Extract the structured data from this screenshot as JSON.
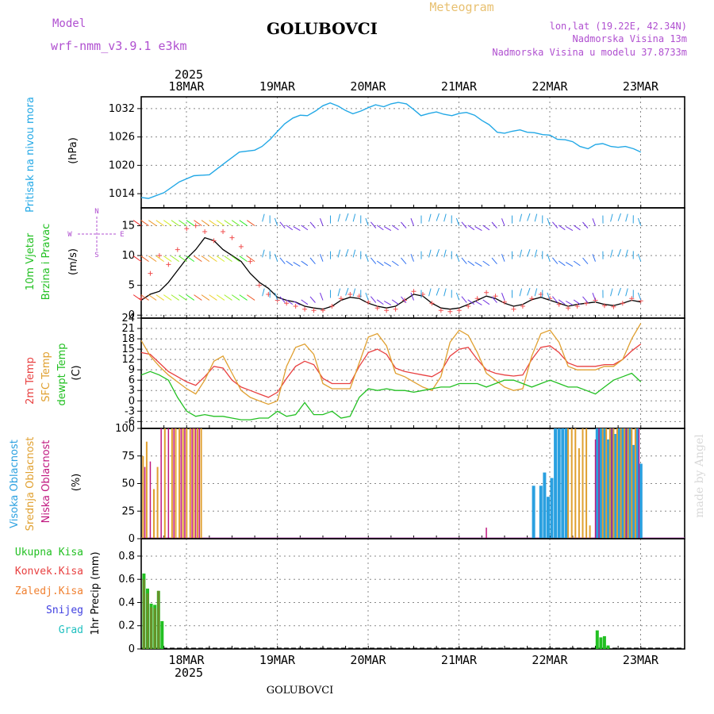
{
  "header": {
    "model_label": "Model",
    "model_name": "wrf-nmm_v3.9.1 e3km",
    "station": "GOLUBOVCI",
    "meteogram": "Meteogram",
    "lonlat": "lon,lat (19.22E, 42.34N)",
    "elevation": "Nadmorska Visina 13m",
    "model_elevation": "Nadmorska Visina u modelu 37.8733m",
    "footer_station": "GOLUBOVCI",
    "watermark": "made by Angel"
  },
  "colors": {
    "pressure": "#22a8e6",
    "wind_label": "#22c022",
    "t2m": "#e84040",
    "sfc": "#e0a030",
    "dewpt": "#22c022",
    "cloud_high": "#2aa0e0",
    "cloud_mid": "#e0a030",
    "cloud_low": "#c01880",
    "precip_total": "#22c022",
    "precip_conv": "#e84040",
    "precip_frozen": "#f08030",
    "snow": "#4040e0",
    "hail": "#20c0c0",
    "model_text": "#b050d0",
    "meteogram_text": "#e8c070",
    "lonlat_text": "#b050d0"
  },
  "time_axis": {
    "year": "2025",
    "days": [
      "18MAR",
      "19MAR",
      "20MAR",
      "21MAR",
      "22MAR",
      "23MAR"
    ]
  },
  "chart_data": [
    {
      "type": "line",
      "title": "Pritisak na nivou mora",
      "ylabel": "(hPa)",
      "yticks": [
        "1014",
        "1020",
        "1026",
        "1032"
      ],
      "ylim": [
        1011,
        1034.5
      ],
      "x_days": [
        0,
        0.08,
        0.25,
        0.42,
        0.58,
        0.75,
        0.92,
        1.08,
        1.25,
        1.33,
        1.42,
        1.5,
        1.58,
        1.67,
        1.75,
        1.83,
        1.92,
        2.0,
        2.08,
        2.17,
        2.25,
        2.33,
        2.42,
        2.5,
        2.58,
        2.67,
        2.75,
        2.83,
        2.92,
        3.0,
        3.08,
        3.17,
        3.25,
        3.33,
        3.42,
        3.5,
        3.58,
        3.67,
        3.75,
        3.83,
        3.92,
        4.0,
        4.08,
        4.17,
        4.25,
        4.33,
        4.42,
        4.5,
        4.58,
        4.67,
        4.75,
        4.83,
        4.92,
        5.0,
        5.08,
        5.17,
        5.25,
        5.33,
        5.42,
        5.5
      ],
      "series": [
        {
          "name": "Pritisak",
          "values": [
            1013.2,
            1013.0,
            1014.2,
            1016.5,
            1017.8,
            1018.0,
            1020.5,
            1022.8,
            1023.2,
            1024.0,
            1025.5,
            1027.2,
            1028.8,
            1030.0,
            1030.6,
            1030.5,
            1031.5,
            1032.6,
            1033.2,
            1032.5,
            1031.6,
            1030.9,
            1031.5,
            1032.2,
            1032.8,
            1032.4,
            1033.0,
            1033.3,
            1033.0,
            1031.8,
            1030.5,
            1031.0,
            1031.3,
            1030.8,
            1030.5,
            1031.0,
            1031.2,
            1030.6,
            1029.5,
            1028.6,
            1027.0,
            1026.8,
            1027.2,
            1027.5,
            1027.0,
            1026.9,
            1026.5,
            1026.4,
            1025.5,
            1025.4,
            1025.0,
            1024.0,
            1023.5,
            1024.4,
            1024.6,
            1024.0,
            1023.8,
            1024.0,
            1023.5,
            1022.8
          ]
        }
      ]
    },
    {
      "type": "line",
      "title": "10m Vjetar Brzina i Pravac",
      "ylabel": "(m/s)",
      "yticks": [
        "0",
        "5",
        "10",
        "15"
      ],
      "ylim": [
        -0.5,
        18
      ],
      "compass": [
        "N",
        "W",
        "E",
        "S"
      ],
      "x_days": [
        0,
        0.1,
        0.2,
        0.3,
        0.4,
        0.5,
        0.6,
        0.7,
        0.8,
        0.9,
        1.0,
        1.1,
        1.2,
        1.3,
        1.4,
        1.5,
        1.6,
        1.7,
        1.8,
        1.9,
        2.0,
        2.1,
        2.2,
        2.3,
        2.4,
        2.5,
        2.6,
        2.7,
        2.8,
        2.9,
        3.0,
        3.1,
        3.2,
        3.3,
        3.4,
        3.5,
        3.6,
        3.7,
        3.8,
        3.9,
        4.0,
        4.1,
        4.2,
        4.3,
        4.4,
        4.5,
        4.6,
        4.7,
        4.8,
        4.9,
        5.0,
        5.1,
        5.2,
        5.3,
        5.4,
        5.5
      ],
      "series": [
        {
          "name": "Brzina",
          "values": [
            2.5,
            3.5,
            4.0,
            5.5,
            7.5,
            9.5,
            11.0,
            13.0,
            12.5,
            11.0,
            10.0,
            9.0,
            7.0,
            5.5,
            4.5,
            3.0,
            2.5,
            2.2,
            1.5,
            1.2,
            1.0,
            1.5,
            2.5,
            3.0,
            2.8,
            2.0,
            1.5,
            1.2,
            1.5,
            2.5,
            3.5,
            3.2,
            2.0,
            1.2,
            1.0,
            1.2,
            1.8,
            2.5,
            3.2,
            2.8,
            2.0,
            1.5,
            1.8,
            2.6,
            3.0,
            2.5,
            2.0,
            1.5,
            1.8,
            2.0,
            2.2,
            1.8,
            1.6,
            2.0,
            2.5,
            2.2
          ]
        },
        {
          "name": "Udari",
          "values": [
            2.8,
            7.0,
            10.0,
            8.5,
            11.0,
            14.5,
            15.0,
            14.0,
            12.5,
            14.0,
            13.0,
            11.5,
            9.0,
            5.0,
            3.5,
            2.5,
            2.0,
            1.5,
            1.0,
            0.8,
            0.8,
            1.5,
            2.8,
            3.5,
            3.2,
            2.2,
            1.2,
            0.8,
            1.0,
            2.5,
            4.0,
            3.5,
            2.0,
            0.8,
            0.6,
            0.8,
            1.5,
            2.8,
            3.8,
            3.2,
            2.2,
            1.0,
            1.5,
            2.8,
            3.5,
            2.8,
            1.8,
            1.2,
            1.5,
            2.0,
            2.5,
            1.6,
            1.4,
            2.0,
            2.8,
            2.4
          ]
        }
      ]
    },
    {
      "type": "line",
      "title": "2m Temp / SFC Temp / dewpt Temp",
      "ylabel": "(C)",
      "yticks": [
        "-6",
        "-3",
        "0",
        "3",
        "6",
        "9",
        "12",
        "15",
        "18",
        "21",
        "24"
      ],
      "ylim": [
        -8,
        24
      ],
      "x_days": [
        0,
        0.1,
        0.2,
        0.3,
        0.4,
        0.5,
        0.6,
        0.7,
        0.8,
        0.9,
        1.0,
        1.1,
        1.2,
        1.3,
        1.4,
        1.5,
        1.6,
        1.7,
        1.8,
        1.9,
        2.0,
        2.1,
        2.2,
        2.3,
        2.4,
        2.5,
        2.6,
        2.7,
        2.8,
        2.9,
        3.0,
        3.1,
        3.2,
        3.3,
        3.4,
        3.5,
        3.6,
        3.7,
        3.8,
        3.9,
        4.0,
        4.1,
        4.2,
        4.3,
        4.4,
        4.5,
        4.6,
        4.7,
        4.8,
        4.9,
        5.0,
        5.1,
        5.2,
        5.3,
        5.4,
        5.5
      ],
      "series": [
        {
          "name": "2m Temp",
          "values": [
            14,
            13.5,
            11,
            8.5,
            7,
            5.5,
            4.5,
            7,
            10,
            9.5,
            6,
            4,
            3,
            2,
            1,
            2.5,
            6.5,
            10,
            11.5,
            10.5,
            6.5,
            5,
            5,
            5,
            10,
            14,
            15,
            13.5,
            9.5,
            8.5,
            8,
            7.5,
            7,
            8.5,
            13,
            15,
            15.5,
            12,
            9,
            8,
            7.5,
            7.2,
            7.5,
            12,
            15.5,
            16,
            14,
            11,
            10,
            10,
            10,
            10.5,
            10.5,
            12,
            14.5,
            16.5
          ]
        },
        {
          "name": "SFC Temp",
          "values": [
            17.5,
            13,
            10,
            7.5,
            5.5,
            3.5,
            2,
            6,
            11.5,
            13,
            8,
            3,
            1,
            0,
            -1,
            0,
            10,
            15.5,
            16.5,
            13.5,
            5,
            3.5,
            3.5,
            3.5,
            11,
            18.5,
            19.5,
            16,
            8,
            7,
            5.5,
            4,
            3,
            7,
            17,
            20.5,
            19,
            14,
            8,
            6,
            4,
            3,
            3.5,
            13,
            19.5,
            20.5,
            17,
            10,
            9,
            9,
            9,
            10,
            10,
            12,
            18,
            22.5
          ]
        },
        {
          "name": "dewpt Temp",
          "values": [
            7.5,
            8.5,
            7.5,
            6,
            1,
            -3,
            -4.5,
            -4,
            -4.5,
            -4.5,
            -5,
            -5.5,
            -5.5,
            -5,
            -5,
            -3,
            -4.5,
            -4,
            -0.5,
            -4,
            -4,
            -3,
            -5,
            -4.5,
            1,
            3.5,
            3,
            3.5,
            3,
            3,
            2.5,
            3,
            3.5,
            4,
            4,
            5,
            5,
            5,
            4,
            5,
            6,
            6,
            5,
            4,
            5,
            6,
            5,
            4,
            4,
            3,
            2,
            4,
            6,
            7,
            8,
            5.5
          ]
        }
      ]
    },
    {
      "type": "bar",
      "title": "Visoka / Srednja / Niska Oblacnost",
      "ylabel": "(%)",
      "yticks": [
        "0",
        "25",
        "50",
        "75",
        "100"
      ],
      "ylim": [
        0,
        100
      ],
      "series": [
        {
          "name": "Visoka Oblacnost",
          "x_days": [
            4.32,
            4.4,
            4.44,
            4.48,
            4.52,
            4.56,
            4.6,
            4.64,
            4.68,
            5.02,
            5.06,
            5.1,
            5.14,
            5.18,
            5.22,
            5.26,
            5.3,
            5.34,
            5.38,
            5.42,
            5.46,
            5.5
          ],
          "values": [
            48,
            48,
            60,
            38,
            55,
            100,
            100,
            100,
            100,
            100,
            100,
            100,
            90,
            100,
            95,
            100,
            100,
            100,
            100,
            85,
            100,
            68
          ]
        },
        {
          "name": "Srednja Oblacnost",
          "x_days": [
            0.02,
            0.06,
            0.14,
            0.18,
            0.26,
            0.34,
            0.38,
            0.42,
            0.46,
            0.5,
            0.54,
            0.58,
            0.62,
            0.66,
            4.7,
            4.74,
            4.78,
            4.82,
            4.86,
            4.9,
            4.94,
            5.08,
            5.12,
            5.16,
            5.2,
            5.24,
            5.28,
            5.32,
            5.36,
            5.4,
            5.44
          ],
          "values": [
            75,
            88,
            45,
            65,
            100,
            100,
            100,
            100,
            100,
            100,
            100,
            100,
            100,
            100,
            100,
            100,
            100,
            82,
            100,
            100,
            12,
            100,
            100,
            100,
            100,
            100,
            100,
            100,
            100,
            100,
            100
          ]
        },
        {
          "name": "Niska Oblacnost",
          "x_days": [
            0.04,
            0.1,
            0.22,
            0.3,
            0.36,
            0.44,
            0.48,
            0.56,
            0.6,
            0.64,
            3.8,
            5.0,
            5.04,
            5.18,
            5.34,
            5.48
          ],
          "values": [
            65,
            70,
            100,
            100,
            100,
            100,
            100,
            100,
            100,
            100,
            10,
            90,
            100,
            100,
            100,
            100
          ]
        }
      ]
    },
    {
      "type": "bar",
      "title": "1hr Precip",
      "ylabel": "1hr Precip (mm)",
      "yticks": [
        "0",
        "0.2",
        "0.4",
        "0.6",
        "0.8"
      ],
      "ylim": [
        0,
        0.95
      ],
      "legend": [
        "Ukupna Kisa",
        "Konvek.Kisa",
        "Zaledj.Kisa",
        "Snijeg",
        "Grad"
      ],
      "series": [
        {
          "name": "Ukupna Kisa",
          "x_days": [
            0.03,
            0.07,
            0.11,
            0.15,
            0.19,
            0.23,
            5.02,
            5.06,
            5.1,
            5.14
          ],
          "values": [
            0.65,
            0.52,
            0.39,
            0.38,
            0.5,
            0.24,
            0.16,
            0.1,
            0.11,
            0.03
          ]
        },
        {
          "name": "Konvek.Kisa",
          "x_days": [
            0.03,
            0.07,
            0.11,
            0.15,
            0.19
          ],
          "values": [
            0.6,
            0.48,
            0.36,
            0.35,
            0.5
          ]
        }
      ]
    }
  ]
}
